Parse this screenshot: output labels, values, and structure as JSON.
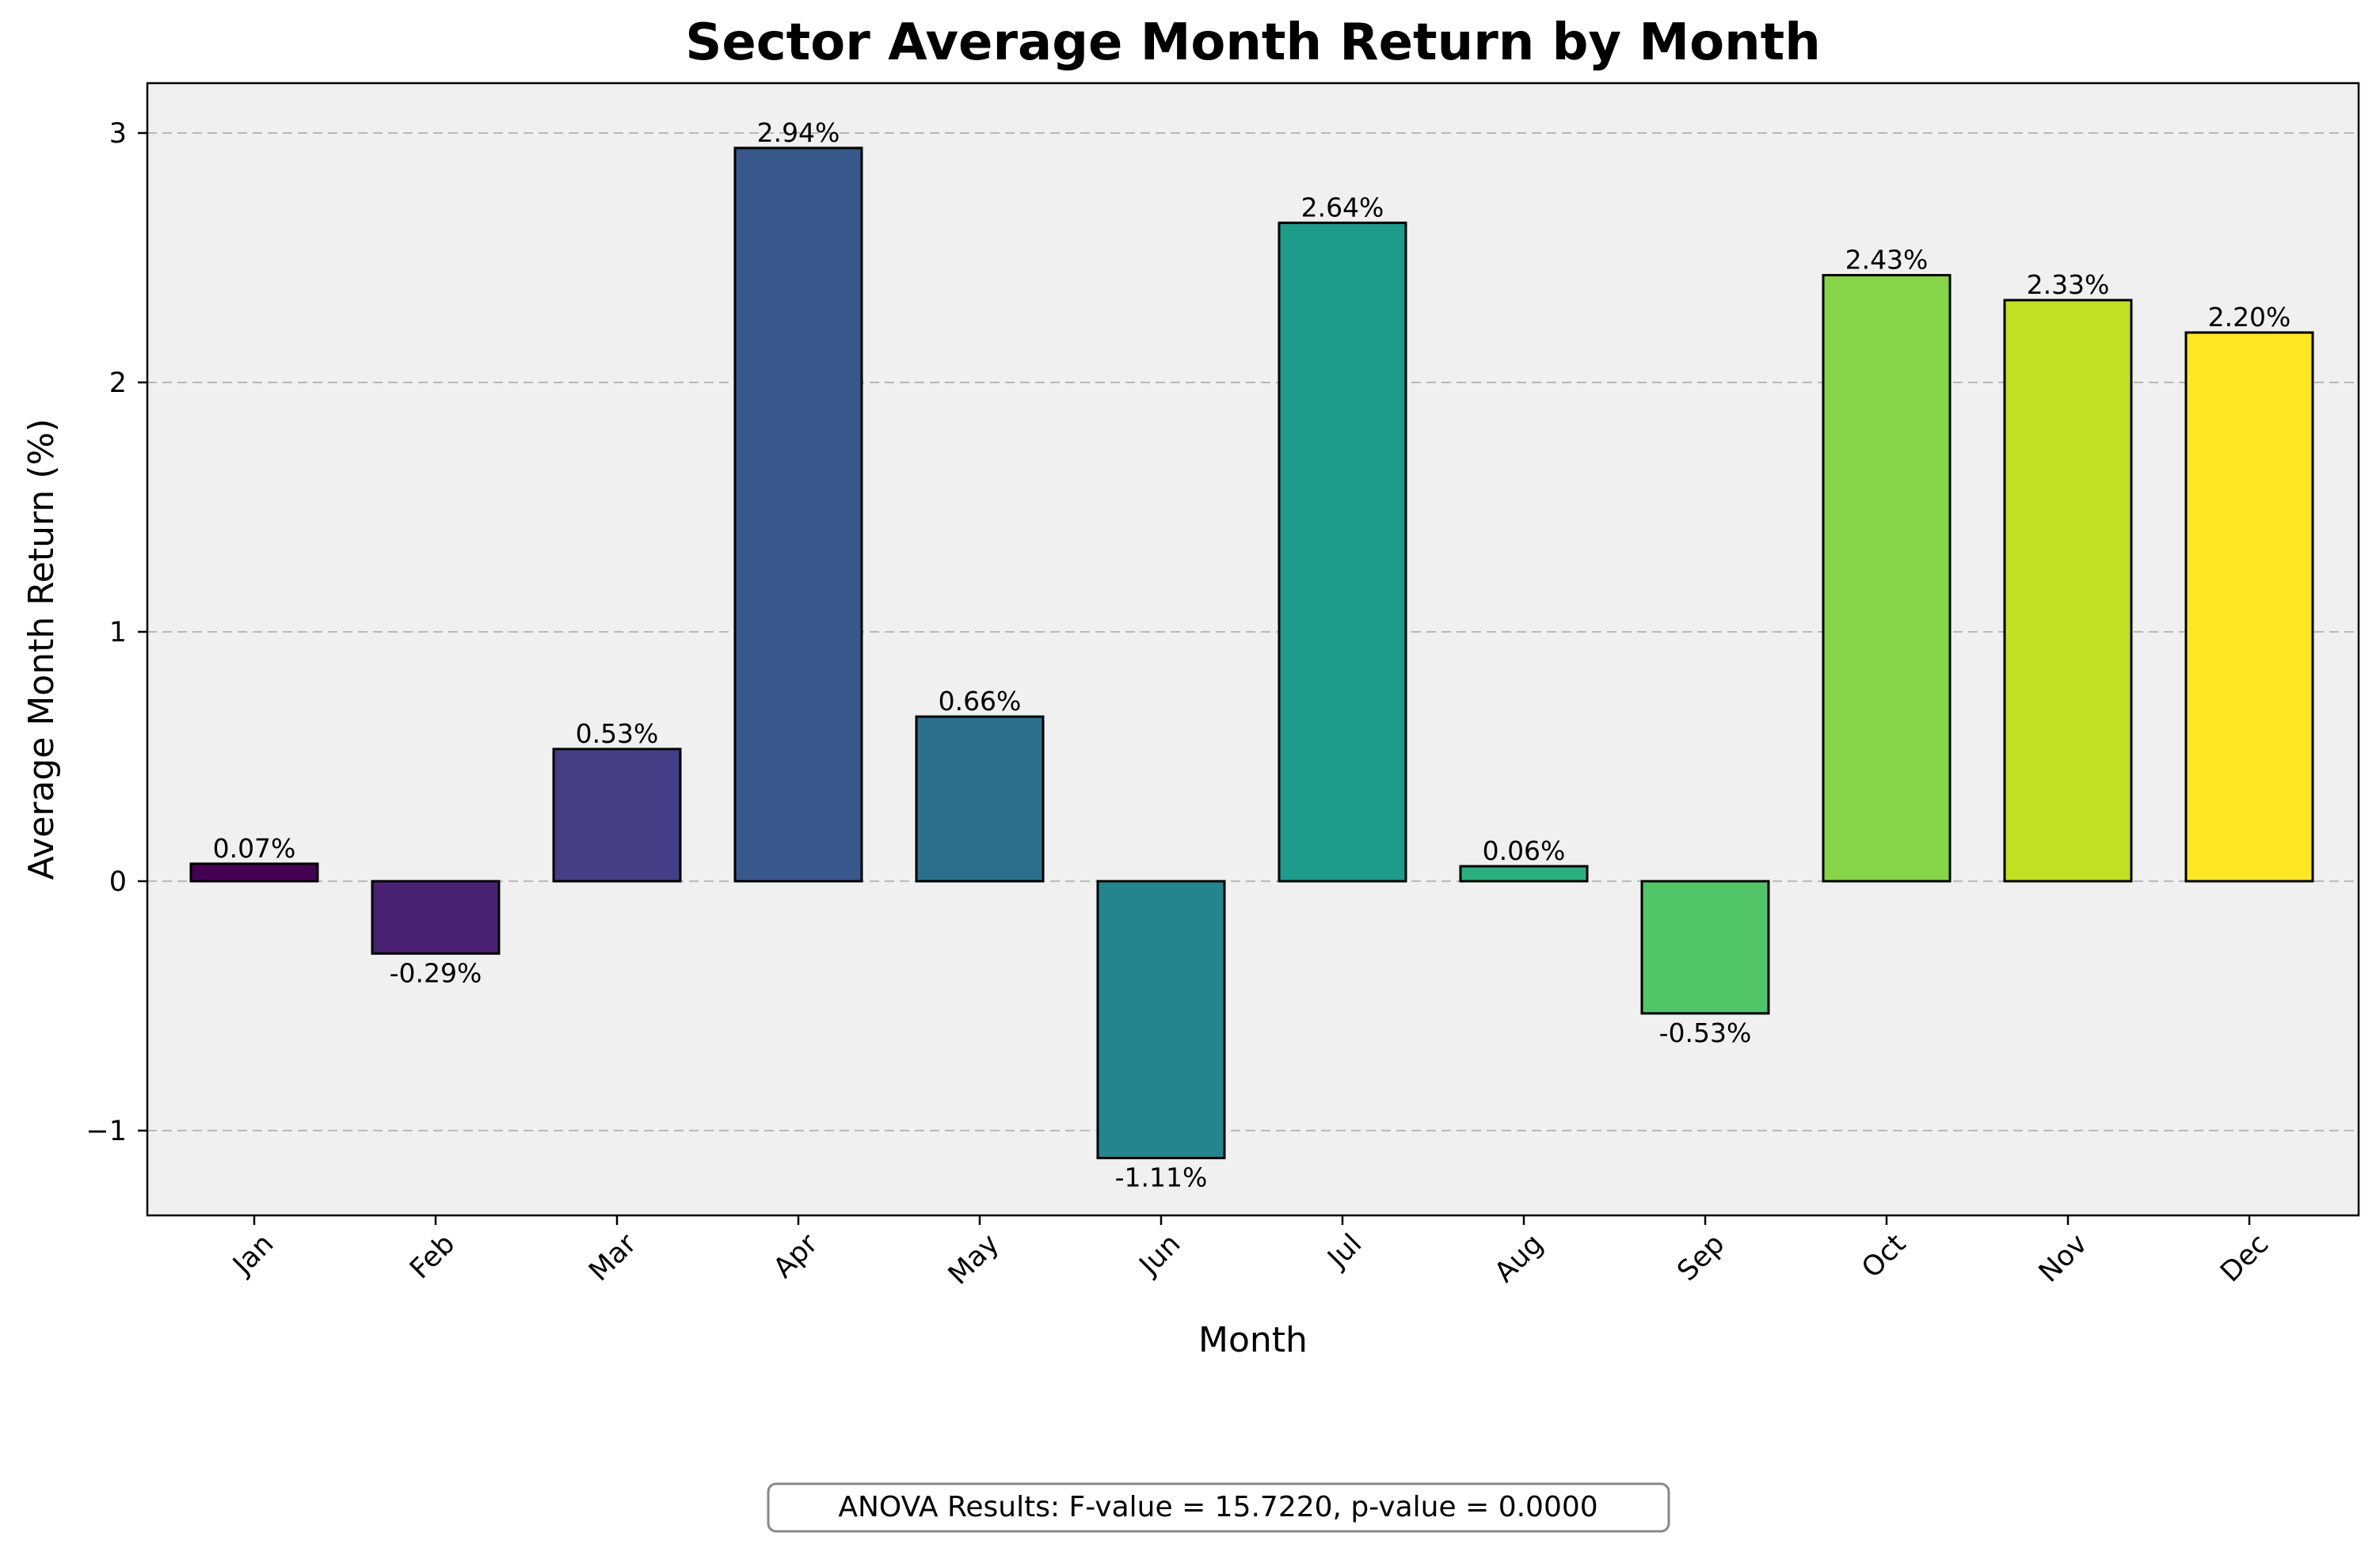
{
  "chart_data": {
    "type": "bar",
    "title": "Sector Average Month Return by Month",
    "xlabel": "Month",
    "ylabel": "Average Month Return (%)",
    "categories": [
      "Jan",
      "Feb",
      "Mar",
      "Apr",
      "May",
      "Jun",
      "Jul",
      "Aug",
      "Sep",
      "Oct",
      "Nov",
      "Dec"
    ],
    "values": [
      0.07,
      -0.29,
      0.53,
      2.94,
      0.66,
      -1.11,
      2.64,
      0.06,
      -0.53,
      2.43,
      2.33,
      2.2
    ],
    "data_labels": [
      "0.07%",
      "-0.29%",
      "0.53%",
      "2.94%",
      "0.66%",
      "-1.11%",
      "2.64%",
      "0.06%",
      "-0.53%",
      "2.43%",
      "2.33%",
      "2.20%"
    ],
    "colors": [
      "#440154",
      "#482173",
      "#433e85",
      "#38588c",
      "#2d708e",
      "#25858e",
      "#1e9b8a",
      "#2ab07f",
      "#52c569",
      "#86d549",
      "#c2df23",
      "#fde725"
    ],
    "ylim": [
      -1.34,
      3.2
    ],
    "yticks": [
      -1,
      0,
      1,
      2,
      3
    ],
    "ytick_labels": [
      "−1",
      "0",
      "1",
      "2",
      "3"
    ],
    "grid": "y-dashed",
    "plot_background": "#f0f0f0",
    "annotation": "ANOVA Results: F-value = 15.7220, p-value = 0.0000"
  }
}
